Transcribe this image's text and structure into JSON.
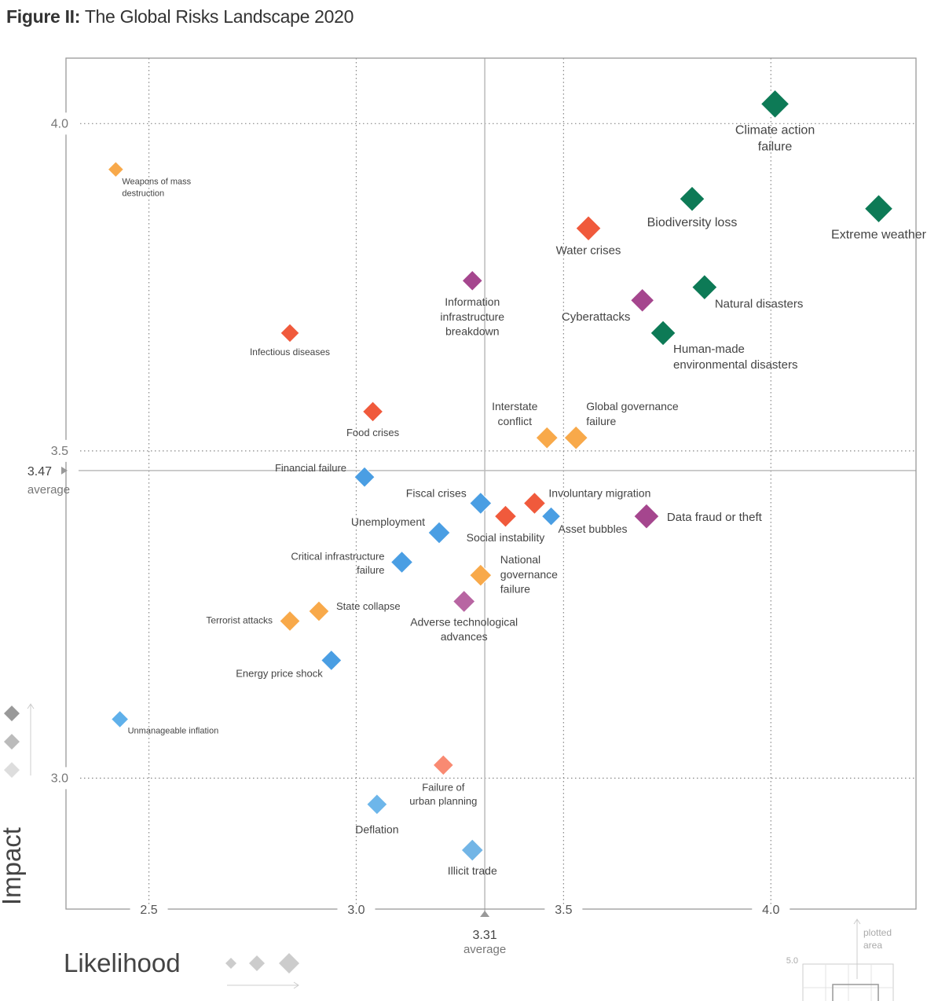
{
  "title": {
    "prefix": "Figure II:",
    "text": "The Global Risks Landscape 2020"
  },
  "chart_data": {
    "type": "scatter",
    "xlabel": "Likelihood",
    "ylabel": "Impact",
    "xlim": [
      2.3,
      4.35
    ],
    "ylim": [
      2.8,
      4.1
    ],
    "x_ticks": [
      "2.5",
      "3.0",
      "3.5",
      "4.0"
    ],
    "y_ticks": [
      "3.0",
      "3.5",
      "4.0"
    ],
    "grid": "dotted",
    "x_average": {
      "value": 3.31,
      "label": "3.31",
      "caption": "average"
    },
    "y_average": {
      "value": 3.47,
      "label": "3.47",
      "caption": "average"
    },
    "inset": {
      "tick": "5.0",
      "caption": [
        "plotted",
        "area"
      ]
    },
    "category_colors": {
      "economic": "#4a9ee3",
      "geopolitical": "#f8a94a",
      "societal": "#f05a3c",
      "technological": "#a5468e",
      "environmental": "#0d7a56"
    },
    "points": [
      {
        "label": [
          "Climate action",
          "failure"
        ],
        "x": 4.01,
        "y": 4.03,
        "category": "environmental"
      },
      {
        "label": [
          "Biodiversity loss"
        ],
        "x": 3.81,
        "y": 3.885,
        "category": "environmental"
      },
      {
        "label": [
          "Extreme weather"
        ],
        "x": 4.26,
        "y": 3.87,
        "category": "environmental"
      },
      {
        "label": [
          "Water crises"
        ],
        "x": 3.56,
        "y": 3.84,
        "category": "societal"
      },
      {
        "label": [
          "Information",
          "infrastructure",
          "breakdown"
        ],
        "x": 3.28,
        "y": 3.76,
        "category": "technological"
      },
      {
        "label": [
          "Natural disasters"
        ],
        "x": 3.84,
        "y": 3.75,
        "category": "environmental"
      },
      {
        "label": [
          "Cyberattacks"
        ],
        "x": 3.69,
        "y": 3.73,
        "category": "technological"
      },
      {
        "label": [
          "Human-made",
          "environmental disasters"
        ],
        "x": 3.74,
        "y": 3.68,
        "category": "environmental"
      },
      {
        "label": [
          "Weapons of mass",
          "destruction"
        ],
        "x": 2.42,
        "y": 3.93,
        "category": "geopolitical"
      },
      {
        "label": [
          "Infectious diseases"
        ],
        "x": 2.84,
        "y": 3.68,
        "category": "societal"
      },
      {
        "label": [
          "Food crises"
        ],
        "x": 3.04,
        "y": 3.56,
        "category": "societal"
      },
      {
        "label": [
          "Interstate",
          "conflict"
        ],
        "x": 3.46,
        "y": 3.52,
        "category": "geopolitical"
      },
      {
        "label": [
          "Global governance",
          "failure"
        ],
        "x": 3.53,
        "y": 3.52,
        "category": "geopolitical"
      },
      {
        "label": [
          "Financial failure"
        ],
        "x": 3.02,
        "y": 3.46,
        "category": "economic"
      },
      {
        "label": [
          "Fiscal crises"
        ],
        "x": 3.3,
        "y": 3.42,
        "category": "economic"
      },
      {
        "label": [
          "Involuntary migration"
        ],
        "x": 3.43,
        "y": 3.42,
        "category": "societal"
      },
      {
        "label": [
          "Social instability"
        ],
        "x": 3.36,
        "y": 3.4,
        "category": "societal"
      },
      {
        "label": [
          "Asset bubbles"
        ],
        "x": 3.47,
        "y": 3.4,
        "category": "economic"
      },
      {
        "label": [
          "Data fraud or theft"
        ],
        "x": 3.7,
        "y": 3.4,
        "category": "technological"
      },
      {
        "label": [
          "Unemployment"
        ],
        "x": 3.2,
        "y": 3.375,
        "category": "economic"
      },
      {
        "label": [
          "Critical infrastructure",
          "failure"
        ],
        "x": 3.11,
        "y": 3.33,
        "category": "economic"
      },
      {
        "label": [
          "National",
          "governance",
          "failure"
        ],
        "x": 3.3,
        "y": 3.31,
        "category": "geopolitical"
      },
      {
        "label": [
          "Adverse technological",
          "advances"
        ],
        "x": 3.26,
        "y": 3.27,
        "category": "technological"
      },
      {
        "label": [
          "State collapse"
        ],
        "x": 2.91,
        "y": 3.255,
        "category": "geopolitical"
      },
      {
        "label": [
          "Terrorist attacks"
        ],
        "x": 2.84,
        "y": 3.24,
        "category": "geopolitical"
      },
      {
        "label": [
          "Energy price shock"
        ],
        "x": 2.94,
        "y": 3.18,
        "category": "economic"
      },
      {
        "label": [
          "Unmanageable inflation"
        ],
        "x": 2.43,
        "y": 3.09,
        "category": "economic"
      },
      {
        "label": [
          "Failure of",
          "urban planning"
        ],
        "x": 3.21,
        "y": 3.02,
        "category": "societal"
      },
      {
        "label": [
          "Deflation"
        ],
        "x": 3.05,
        "y": 2.96,
        "category": "economic"
      },
      {
        "label": [
          "Illicit trade"
        ],
        "x": 3.28,
        "y": 2.89,
        "category": "economic"
      }
    ]
  }
}
